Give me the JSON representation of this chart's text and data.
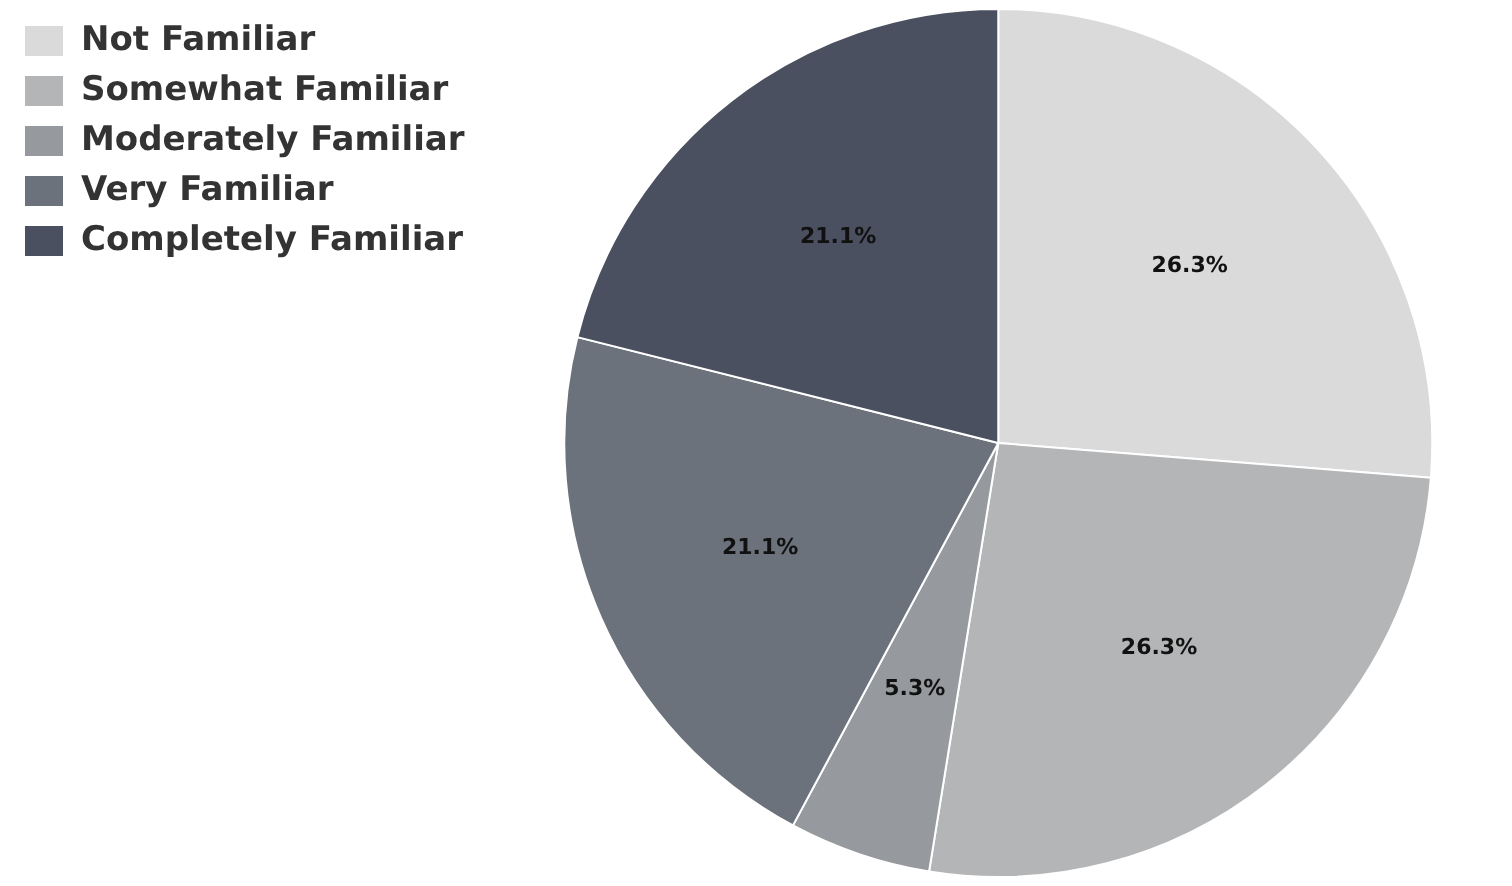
{
  "chart_data": {
    "type": "pie",
    "categories": [
      "Not Familiar",
      "Somewhat Familiar",
      "Moderately Familiar",
      "Very Familiar",
      "Completely Familiar"
    ],
    "values": [
      26.3,
      26.3,
      5.3,
      21.1,
      21.1
    ],
    "colors": [
      "#dadadb",
      "#b4b5b7",
      "#96999d",
      "#6c727c",
      "#4a5060"
    ],
    "value_labels": [
      "26.3%",
      "26.3%",
      "5.3%",
      "21.1%",
      "21.1%"
    ],
    "legend": "top left"
  }
}
